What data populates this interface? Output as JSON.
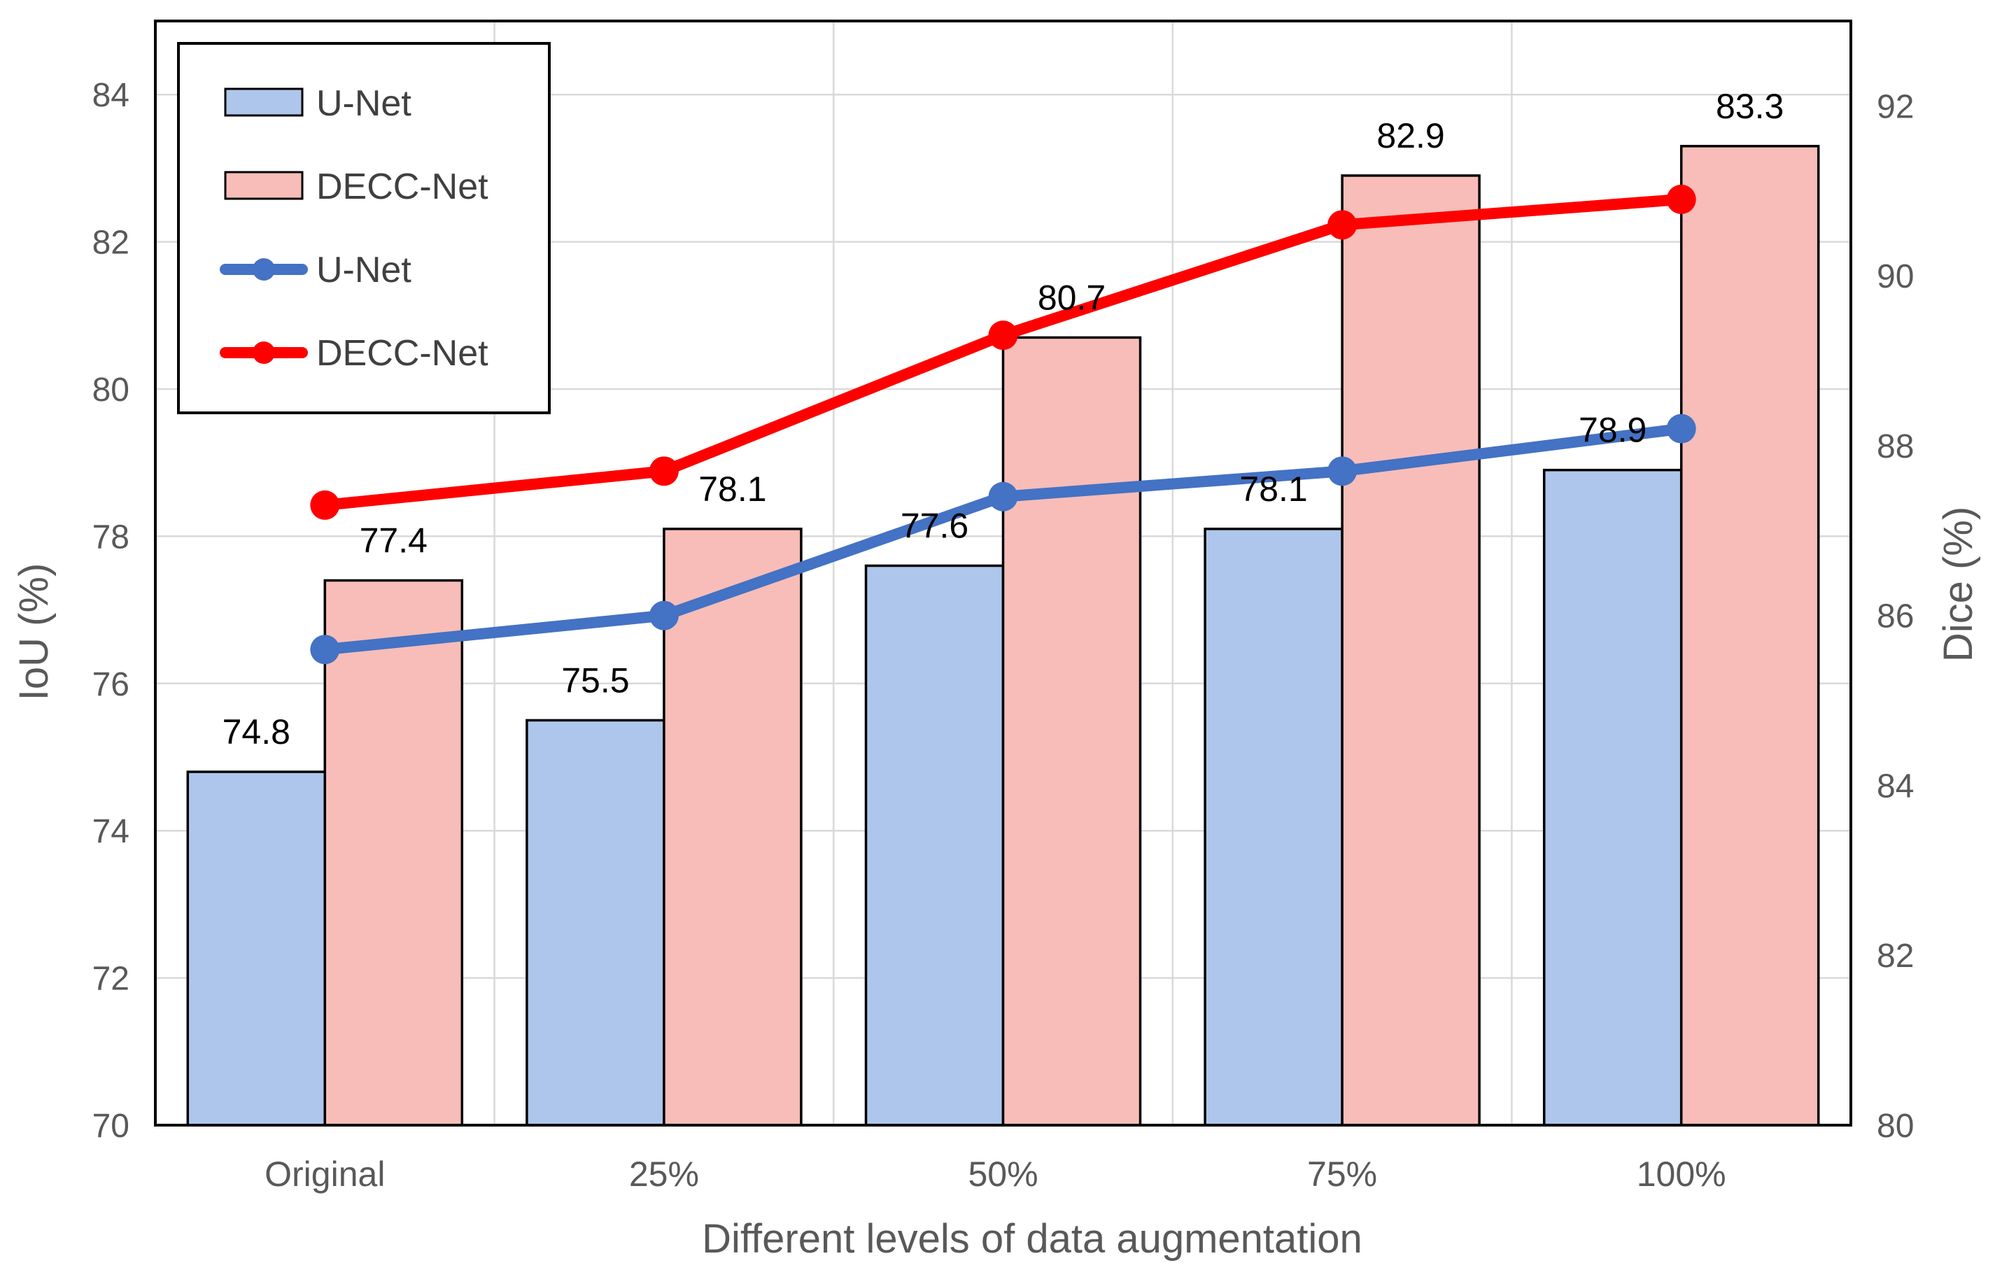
{
  "colors": {
    "unet_bar": "#aec6eb",
    "decc_bar": "#f8bdb8",
    "unet_line": "#4472c4",
    "decc_line": "#ff0000",
    "grid": "#d9d9d9",
    "axis_text": "#595959"
  },
  "chart_data": {
    "type": "bar+line",
    "categories": [
      "Original",
      "25%",
      "50%",
      "75%",
      "100%"
    ],
    "xlabel": "Different levels of data augmentation",
    "ylabel_left": "IoU (%)",
    "ylabel_right": "Dice (%)",
    "ylim_left": [
      70,
      85
    ],
    "ylim_right": [
      80,
      93
    ],
    "yticks_left": [
      "70",
      "72",
      "74",
      "76",
      "78",
      "80",
      "82",
      "84"
    ],
    "yticks_right": [
      "80",
      "82",
      "84",
      "86",
      "88",
      "90",
      "92"
    ],
    "grid": true,
    "legend_placement": "top-left",
    "bar_series": [
      {
        "name": "U-Net",
        "axis": "left",
        "values": [
          74.8,
          75.5,
          77.6,
          78.1,
          78.9
        ],
        "labels": [
          "74.8",
          "75.5",
          "77.6",
          "78.1",
          "78.9"
        ]
      },
      {
        "name": "DECC-Net",
        "axis": "left",
        "values": [
          77.4,
          78.1,
          80.7,
          82.9,
          83.3
        ],
        "labels": [
          "77.4",
          "78.1",
          "80.7",
          "82.9",
          "83.3"
        ]
      }
    ],
    "line_series": [
      {
        "name": "U-Net",
        "axis": "right",
        "values": [
          85.6,
          86.0,
          87.4,
          87.7,
          88.2
        ]
      },
      {
        "name": "DECC-Net",
        "axis": "right",
        "values": [
          87.3,
          87.7,
          89.3,
          90.6,
          90.9
        ]
      }
    ]
  }
}
